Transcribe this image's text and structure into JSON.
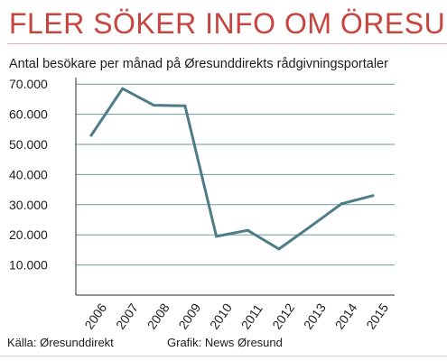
{
  "header": {
    "title": "FLER SÖKER INFO OM ÖRESUNDSJOBB",
    "subtitle": "Antal besökare per månad på Øresunddirekts rådgivningsportaler"
  },
  "footer": {
    "source": "Källa: Øresunddirekt",
    "credit": "Grafik: News Øresund"
  },
  "colors": {
    "title": "#c8443f",
    "line": "#4e7c86",
    "grid": "#6f9aa3"
  },
  "chart_data": {
    "type": "line",
    "title": "FLER SÖKER INFO OM ÖRESUNDSJOBB",
    "subtitle": "Antal besökare per månad på Øresunddirekts rådgivningsportaler",
    "xlabel": "",
    "ylabel": "",
    "categories": [
      "2006",
      "2007",
      "2008",
      "2009",
      "2010",
      "2011",
      "2012",
      "2013",
      "2014",
      "2015"
    ],
    "series": [
      {
        "values": [
          53000,
          68500,
          63000,
          62800,
          19500,
          21500,
          15300,
          22700,
          30300,
          33000
        ]
      }
    ],
    "y_ticks": [
      10000,
      20000,
      30000,
      40000,
      50000,
      60000,
      70000
    ],
    "y_tick_labels": [
      "10.000",
      "20.000",
      "30.000",
      "40.000",
      "50.000",
      "60.000",
      "70.000"
    ],
    "ylim": [
      0,
      70000
    ],
    "grid": true,
    "legend": "none"
  }
}
